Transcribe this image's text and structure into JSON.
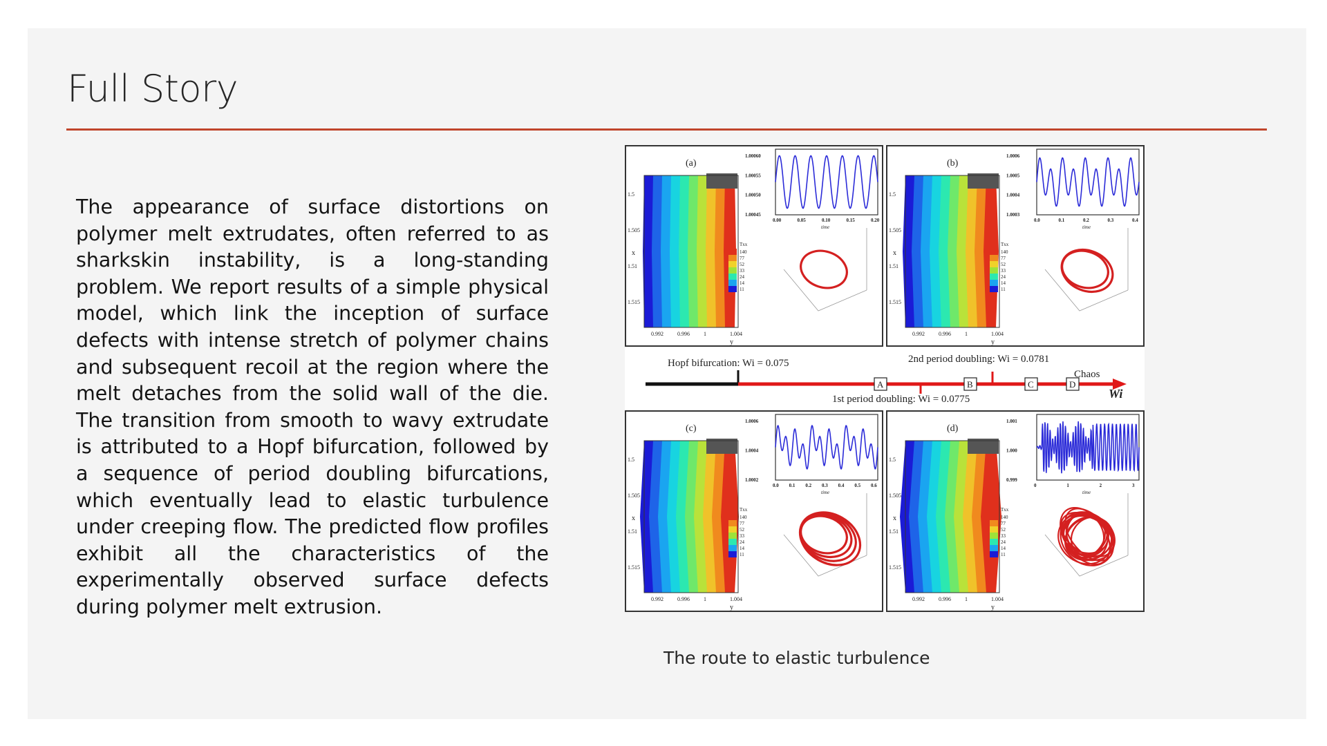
{
  "slide": {
    "title": "Full Story",
    "paragraph": "The appearance of surface distortions on polymer melt extrudates, often referred to as sharkskin instability, is a long-standing problem. We report results of a simple physical model, which link the inception of surface defects with intense stretch of polymer chains and subsequent recoil at the region where the melt detaches from the solid wall of the die. The transition from smooth to wavy extrudate is attributed to a Hopf bifurcation, followed by a sequence of period doubling bifurcations, which eventually lead to elastic turbulence under creeping flow. The predicted flow profiles exhibit all the characteristics of the experimentally observed surface defects during polymer melt extrusion.",
    "caption": "The route to elastic turbulence"
  },
  "figure": {
    "panels": [
      {
        "label": "(a)",
        "time_ticks": [
          "0.00",
          "0.05",
          "0.10",
          "0.15",
          "0.20"
        ],
        "y_ticks": [
          "1.00060",
          "1.00055",
          "1.00050",
          "1.00045"
        ]
      },
      {
        "label": "(b)",
        "time_ticks": [
          "0.0",
          "0.1",
          "0.2",
          "0.3",
          "0.4"
        ],
        "y_ticks": [
          "1.0006",
          "1.0005",
          "1.0004",
          "1.0003"
        ]
      },
      {
        "label": "(c)",
        "time_ticks": [
          "0.0",
          "0.1",
          "0.2",
          "0.3",
          "0.4",
          "0.5",
          "0.6"
        ],
        "y_ticks": [
          "1.0006",
          "1.0004",
          "1.0002"
        ]
      },
      {
        "label": "(d)",
        "time_ticks": [
          "0",
          "1",
          "2",
          "3"
        ],
        "y_ticks": [
          "1.001",
          "1.000",
          "0.999"
        ]
      }
    ],
    "contour_axis": {
      "x_label": "x",
      "y_label": "y",
      "x_ticks": [
        "1.5",
        "1.505",
        "1.51",
        "1.515"
      ],
      "y_ticks": [
        "0.992",
        "0.996",
        "1",
        "1.004"
      ]
    },
    "legend": {
      "title": "Txx",
      "levels": [
        "140",
        "77",
        "52",
        "33",
        "24",
        "14",
        "11"
      ]
    },
    "time_label": "time",
    "bifurcation": {
      "hopf": "Hopf bifurcation: Wi = 0.075",
      "second": "2nd period doubling: Wi = 0.0781",
      "first": "1st period doubling: Wi = 0.0775",
      "chaos": "Chaos",
      "axis": "Wi",
      "markers": [
        "A",
        "B",
        "C",
        "D"
      ]
    }
  }
}
